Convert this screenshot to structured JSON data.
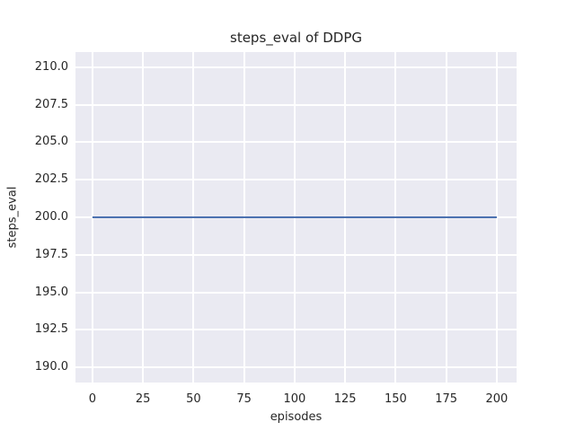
{
  "title": "steps_eval of DDPG",
  "chart_data": {
    "type": "line",
    "title": "steps_eval of DDPG",
    "xlabel": "episodes",
    "ylabel": "steps_eval",
    "x_ticks": [
      0,
      25,
      50,
      75,
      100,
      125,
      150,
      175,
      200
    ],
    "y_tick_values": [
      190.0,
      192.5,
      195.0,
      197.5,
      200.0,
      202.5,
      205.0,
      207.5,
      210.0
    ],
    "y_tick_labels": [
      "190.0",
      "192.5",
      "195.0",
      "197.5",
      "200.0",
      "202.5",
      "205.0",
      "207.5",
      "210.0"
    ],
    "xlim": [
      -8.4,
      209.8
    ],
    "ylim": [
      189.0,
      211.0
    ],
    "grid": true,
    "legend": false,
    "style": {
      "plot_background": "#eaeaf2",
      "grid_color": "#ffffff",
      "text_color": "#262626",
      "figure_background": "#ffffff"
    },
    "series": [
      {
        "name": "steps_eval",
        "color": "#4c72b0",
        "line_width": 2,
        "x": [
          0,
          200
        ],
        "y": [
          200,
          200
        ],
        "note": "constant value of 200 steps_eval across episodes 0 to 200"
      }
    ]
  }
}
